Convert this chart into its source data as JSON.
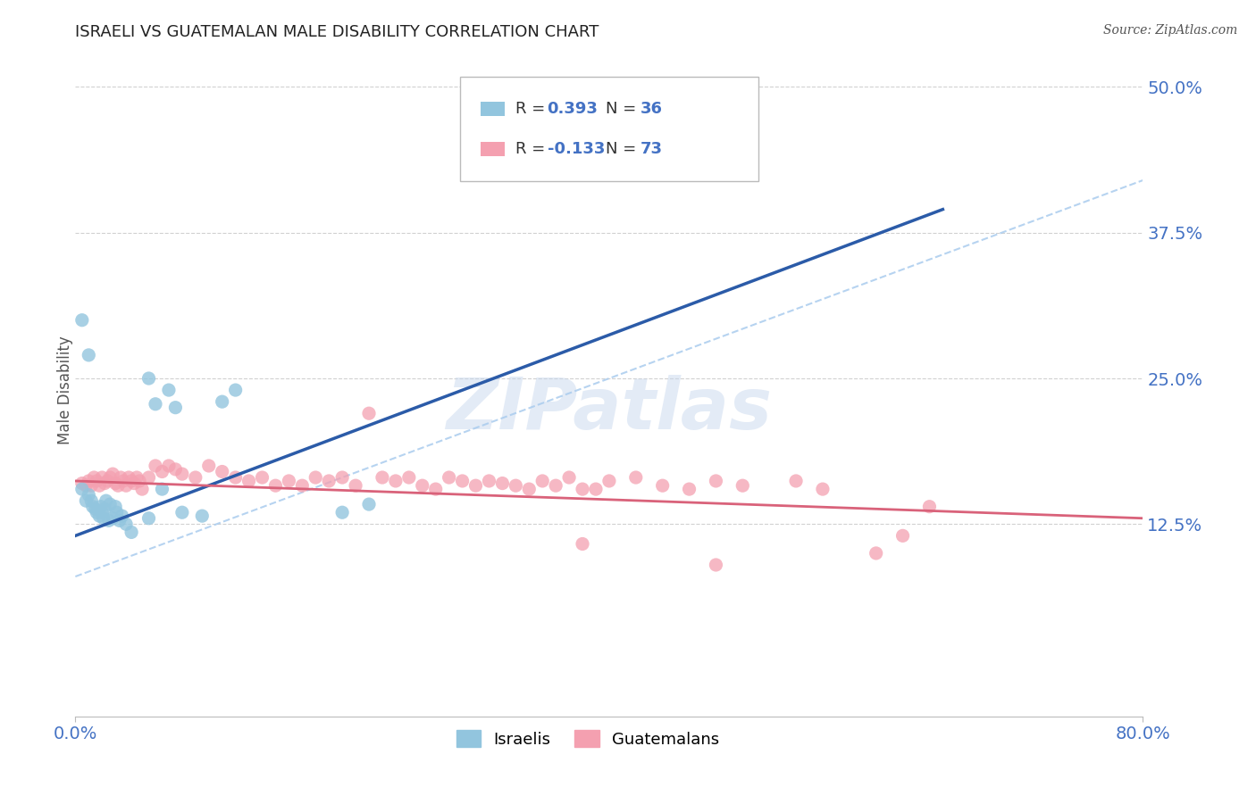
{
  "title": "ISRAELI VS GUATEMALAN MALE DISABILITY CORRELATION CHART",
  "source": "Source: ZipAtlas.com",
  "xlim": [
    0.0,
    0.8
  ],
  "ylim": [
    -0.04,
    0.52
  ],
  "yticks": [
    0.125,
    0.25,
    0.375,
    0.5
  ],
  "ytick_labels": [
    "12.5%",
    "25.0%",
    "37.5%",
    "50.0%"
  ],
  "xticks": [
    0.0,
    0.8
  ],
  "xtick_labels": [
    "0.0%",
    "80.0%"
  ],
  "israeli_color": "#92C5DE",
  "guatemalan_color": "#F4A0B0",
  "israeli_line_color": "#2B5BA8",
  "guatemalan_line_color": "#D9627A",
  "dashed_line_color": "#AACCEE",
  "R_israeli": 0.393,
  "N_israeli": 36,
  "R_guatemalan": -0.133,
  "N_guatemalan": 73,
  "watermark": "ZIPatlas",
  "background_color": "#FFFFFF",
  "grid_color": "#CCCCCC",
  "title_color": "#222222",
  "tick_color": "#4472C4",
  "ylabel": "Male Disability",
  "israeli_scatter": [
    [
      0.005,
      0.155
    ],
    [
      0.008,
      0.145
    ],
    [
      0.01,
      0.15
    ],
    [
      0.012,
      0.145
    ],
    [
      0.013,
      0.14
    ],
    [
      0.015,
      0.138
    ],
    [
      0.016,
      0.135
    ],
    [
      0.018,
      0.132
    ],
    [
      0.019,
      0.14
    ],
    [
      0.02,
      0.135
    ],
    [
      0.021,
      0.13
    ],
    [
      0.022,
      0.138
    ],
    [
      0.023,
      0.145
    ],
    [
      0.025,
      0.128
    ],
    [
      0.026,
      0.142
    ],
    [
      0.028,
      0.13
    ],
    [
      0.03,
      0.14
    ],
    [
      0.031,
      0.135
    ],
    [
      0.033,
      0.128
    ],
    [
      0.035,
      0.132
    ],
    [
      0.038,
      0.125
    ],
    [
      0.042,
      0.118
    ],
    [
      0.055,
      0.13
    ],
    [
      0.065,
      0.155
    ],
    [
      0.07,
      0.24
    ],
    [
      0.075,
      0.225
    ],
    [
      0.055,
      0.25
    ],
    [
      0.06,
      0.228
    ],
    [
      0.08,
      0.135
    ],
    [
      0.095,
      0.132
    ],
    [
      0.12,
      0.24
    ],
    [
      0.11,
      0.23
    ],
    [
      0.2,
      0.135
    ],
    [
      0.22,
      0.142
    ],
    [
      0.005,
      0.3
    ],
    [
      0.01,
      0.27
    ]
  ],
  "guatemalan_scatter": [
    [
      0.005,
      0.16
    ],
    [
      0.008,
      0.158
    ],
    [
      0.01,
      0.162
    ],
    [
      0.012,
      0.158
    ],
    [
      0.014,
      0.165
    ],
    [
      0.016,
      0.162
    ],
    [
      0.018,
      0.158
    ],
    [
      0.02,
      0.165
    ],
    [
      0.022,
      0.16
    ],
    [
      0.024,
      0.162
    ],
    [
      0.026,
      0.165
    ],
    [
      0.028,
      0.168
    ],
    [
      0.03,
      0.16
    ],
    [
      0.032,
      0.158
    ],
    [
      0.034,
      0.165
    ],
    [
      0.036,
      0.162
    ],
    [
      0.038,
      0.158
    ],
    [
      0.04,
      0.165
    ],
    [
      0.042,
      0.162
    ],
    [
      0.044,
      0.16
    ],
    [
      0.046,
      0.165
    ],
    [
      0.048,
      0.162
    ],
    [
      0.05,
      0.155
    ],
    [
      0.055,
      0.165
    ],
    [
      0.06,
      0.175
    ],
    [
      0.065,
      0.17
    ],
    [
      0.07,
      0.175
    ],
    [
      0.075,
      0.172
    ],
    [
      0.08,
      0.168
    ],
    [
      0.09,
      0.165
    ],
    [
      0.1,
      0.175
    ],
    [
      0.11,
      0.17
    ],
    [
      0.12,
      0.165
    ],
    [
      0.13,
      0.162
    ],
    [
      0.14,
      0.165
    ],
    [
      0.15,
      0.158
    ],
    [
      0.16,
      0.162
    ],
    [
      0.17,
      0.158
    ],
    [
      0.18,
      0.165
    ],
    [
      0.19,
      0.162
    ],
    [
      0.2,
      0.165
    ],
    [
      0.21,
      0.158
    ],
    [
      0.22,
      0.22
    ],
    [
      0.23,
      0.165
    ],
    [
      0.24,
      0.162
    ],
    [
      0.25,
      0.165
    ],
    [
      0.26,
      0.158
    ],
    [
      0.27,
      0.155
    ],
    [
      0.28,
      0.165
    ],
    [
      0.29,
      0.162
    ],
    [
      0.3,
      0.158
    ],
    [
      0.31,
      0.162
    ],
    [
      0.32,
      0.16
    ],
    [
      0.33,
      0.158
    ],
    [
      0.34,
      0.155
    ],
    [
      0.35,
      0.162
    ],
    [
      0.36,
      0.158
    ],
    [
      0.37,
      0.165
    ],
    [
      0.38,
      0.155
    ],
    [
      0.39,
      0.155
    ],
    [
      0.4,
      0.162
    ],
    [
      0.42,
      0.165
    ],
    [
      0.44,
      0.158
    ],
    [
      0.46,
      0.155
    ],
    [
      0.48,
      0.162
    ],
    [
      0.5,
      0.158
    ],
    [
      0.54,
      0.162
    ],
    [
      0.56,
      0.155
    ],
    [
      0.6,
      0.1
    ],
    [
      0.62,
      0.115
    ],
    [
      0.64,
      0.14
    ],
    [
      0.48,
      0.09
    ],
    [
      0.38,
      0.108
    ]
  ],
  "dashed_line_x": [
    0.0,
    0.8
  ],
  "dashed_line_y": [
    0.08,
    0.42
  ],
  "israeli_line_x": [
    0.0,
    0.65
  ],
  "israeli_line_y": [
    0.115,
    0.395
  ],
  "guatemalan_line_x": [
    0.0,
    0.8
  ],
  "guatemalan_line_y": [
    0.162,
    0.13
  ]
}
